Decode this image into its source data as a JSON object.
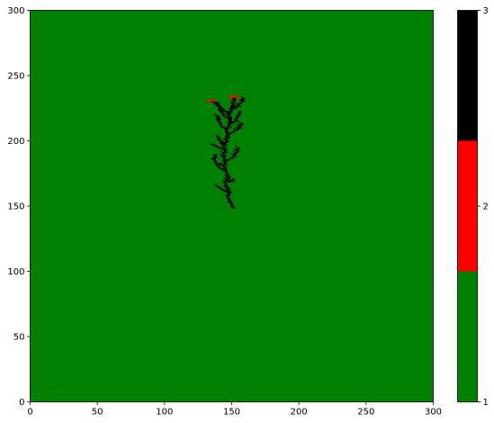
{
  "chart_data": {
    "type": "heatmap",
    "title": "",
    "xlabel": "",
    "ylabel": "",
    "xlim": [
      0,
      300
    ],
    "ylim": [
      0,
      300
    ],
    "xticks": [
      0,
      50,
      100,
      150,
      200,
      250,
      300
    ],
    "yticks": [
      0,
      50,
      100,
      150,
      200,
      250,
      300
    ],
    "background_state": 1,
    "cmap": {
      "colors": [
        "#008000",
        "#ff0000",
        "#000000"
      ],
      "boundaries": [
        1,
        1.6667,
        2.3333,
        3
      ],
      "ticks": [
        1,
        2,
        3
      ]
    },
    "tick_labels": {
      "x": [
        "0",
        "50",
        "100",
        "150",
        "200",
        "250",
        "300"
      ],
      "y": [
        "0",
        "50",
        "100",
        "150",
        "200",
        "250",
        "300"
      ],
      "colorbar": [
        "1",
        "2",
        "3"
      ]
    },
    "cluster": {
      "description_state": "burned (3) cells forming a branching tree shape, with burning (2) cells at the top front",
      "trunk": [
        [
          150,
          148
        ],
        [
          148,
          152
        ],
        [
          146,
          156
        ],
        [
          147,
          160
        ],
        [
          145,
          164
        ],
        [
          144,
          168
        ],
        [
          146,
          172
        ],
        [
          145,
          176
        ],
        [
          143,
          180
        ],
        [
          144,
          184
        ],
        [
          142,
          188
        ],
        [
          144,
          192
        ],
        [
          143,
          196
        ],
        [
          145,
          200
        ],
        [
          146,
          204
        ],
        [
          145,
          208
        ],
        [
          147,
          212
        ],
        [
          148,
          216
        ],
        [
          147,
          220
        ],
        [
          149,
          224
        ],
        [
          150,
          228
        ],
        [
          151,
          232
        ]
      ],
      "branches": [
        [
          [
            145,
            176
          ],
          [
            141,
            178
          ],
          [
            138,
            181
          ],
          [
            136,
            185
          ],
          [
            137,
            189
          ]
        ],
        [
          [
            144,
            192
          ],
          [
            140,
            194
          ],
          [
            136,
            196
          ],
          [
            134,
            197
          ]
        ],
        [
          [
            143,
            196
          ],
          [
            140,
            200
          ],
          [
            138,
            203
          ]
        ],
        [
          [
            146,
            204
          ],
          [
            150,
            206
          ],
          [
            154,
            209
          ],
          [
            156,
            213
          ]
        ],
        [
          [
            145,
            208
          ],
          [
            141,
            211
          ],
          [
            139,
            215
          ],
          [
            138,
            219
          ]
        ],
        [
          [
            147,
            212
          ],
          [
            151,
            214
          ],
          [
            153,
            218
          ],
          [
            155,
            222
          ]
        ],
        [
          [
            147,
            220
          ],
          [
            143,
            223
          ],
          [
            140,
            226
          ],
          [
            138,
            229
          ]
        ],
        [
          [
            149,
            224
          ],
          [
            153,
            226
          ],
          [
            156,
            229
          ],
          [
            158,
            232
          ]
        ],
        [
          [
            148,
            216
          ],
          [
            144,
            218
          ],
          [
            141,
            222
          ],
          [
            139,
            226
          ],
          [
            136,
            229
          ],
          [
            134,
            231
          ]
        ],
        [
          [
            146,
            160
          ],
          [
            141,
            163
          ],
          [
            138,
            165
          ]
        ],
        [
          [
            147,
            168
          ],
          [
            150,
            170
          ]
        ],
        [
          [
            145,
            184
          ],
          [
            149,
            186
          ],
          [
            152,
            190
          ],
          [
            154,
            194
          ]
        ],
        [
          [
            143,
            180
          ],
          [
            139,
            182
          ]
        ]
      ],
      "burning_cells": [
        [
          132,
          230
        ],
        [
          134,
          231
        ],
        [
          136,
          231
        ],
        [
          148,
          233
        ],
        [
          150,
          234
        ],
        [
          152,
          234
        ],
        [
          154,
          233
        ]
      ]
    }
  }
}
